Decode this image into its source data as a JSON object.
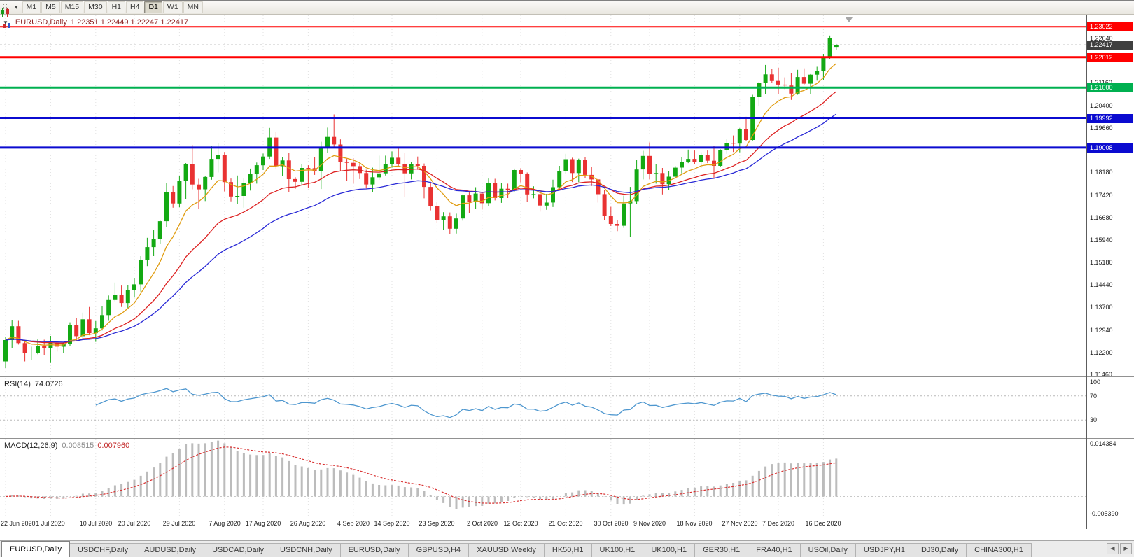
{
  "toolbar": {
    "timeframes": [
      {
        "label": "M1",
        "active": false
      },
      {
        "label": "M5",
        "active": false
      },
      {
        "label": "M15",
        "active": false
      },
      {
        "label": "M30",
        "active": false
      },
      {
        "label": "H1",
        "active": false
      },
      {
        "label": "H4",
        "active": false
      },
      {
        "label": "D1",
        "active": true
      },
      {
        "label": "W1",
        "active": false
      },
      {
        "label": "MN",
        "active": false
      }
    ],
    "caret_glyph": "▾"
  },
  "tabs": {
    "items": [
      {
        "label": "EURUSD,Daily",
        "active": true
      },
      {
        "label": "USDCHF,Daily",
        "active": false
      },
      {
        "label": "AUDUSD,Daily",
        "active": false
      },
      {
        "label": "USDCAD,Daily",
        "active": false
      },
      {
        "label": "USDCNH,Daily",
        "active": false
      },
      {
        "label": "EURUSD,Daily",
        "active": false
      },
      {
        "label": "GBPUSD,H4",
        "active": false
      },
      {
        "label": "XAUUSD,Weekly",
        "active": false
      },
      {
        "label": "HK50,H1",
        "active": false
      },
      {
        "label": "UK100,H1",
        "active": false
      },
      {
        "label": "UK100,H1",
        "active": false
      },
      {
        "label": "GER30,H1",
        "active": false
      },
      {
        "label": "FRA40,H1",
        "active": false
      },
      {
        "label": "USOil,Daily",
        "active": false
      },
      {
        "label": "USDJPY,H1",
        "active": false
      },
      {
        "label": "DJ30,Daily",
        "active": false
      },
      {
        "label": "CHINA300,H1",
        "active": false
      }
    ],
    "scroll_left": "◀",
    "scroll_right": "▶"
  },
  "chart_data": {
    "type": "candlestick",
    "title": {
      "symbol": "EURUSD,Daily",
      "ohlc": "1.22351 1.22449 1.22247 1.22417"
    },
    "ylim": [
      1.114,
      1.234
    ],
    "y_axis_labels": [
      "1.22640",
      "1.21900",
      "1.21160",
      "1.20400",
      "1.19660",
      "1.18920",
      "1.18180",
      "1.17420",
      "1.16680",
      "1.15940",
      "1.15180",
      "1.14440",
      "1.13700",
      "1.12940",
      "1.12200",
      "1.11460"
    ],
    "x_axis": {
      "labels": [
        "22 Jun 2020",
        "1 Jul 2020",
        "10 Jul 2020",
        "20 Jul 2020",
        "29 Jul 2020",
        "7 Aug 2020",
        "17 Aug 2020",
        "26 Aug 2020",
        "4 Sep 2020",
        "14 Sep 2020",
        "23 Sep 2020",
        "2 Oct 2020",
        "12 Oct 2020",
        "21 Oct 2020",
        "30 Oct 2020",
        "9 Nov 2020",
        "18 Nov 2020",
        "27 Nov 2020",
        "7 Dec 2020",
        "16 Dec 2020"
      ],
      "indices": [
        0,
        7,
        14,
        20,
        27,
        34,
        40,
        47,
        54,
        60,
        67,
        74,
        80,
        87,
        94,
        100,
        107,
        114,
        120,
        127
      ]
    },
    "up_color": "#13a913",
    "down_color": "#e93232",
    "candles": [
      [
        1.119,
        1.1271,
        1.1168,
        1.1261
      ],
      [
        1.1261,
        1.1326,
        1.1233,
        1.1307
      ],
      [
        1.1307,
        1.1325,
        1.1246,
        1.1251
      ],
      [
        1.1251,
        1.1262,
        1.119,
        1.1218
      ],
      [
        1.1218,
        1.1239,
        1.1194,
        1.1219
      ],
      [
        1.1219,
        1.1263,
        1.1214,
        1.1242
      ],
      [
        1.1242,
        1.1262,
        1.1211,
        1.1234
      ],
      [
        1.1234,
        1.1275,
        1.1185,
        1.1252
      ],
      [
        1.1252,
        1.1254,
        1.1223,
        1.1239
      ],
      [
        1.1239,
        1.1254,
        1.1219,
        1.1248
      ],
      [
        1.1248,
        1.132,
        1.1241,
        1.131
      ],
      [
        1.131,
        1.1333,
        1.1259,
        1.1274
      ],
      [
        1.1274,
        1.1352,
        1.1266,
        1.133
      ],
      [
        1.133,
        1.1371,
        1.1277,
        1.1284
      ],
      [
        1.1284,
        1.1324,
        1.1255,
        1.13
      ],
      [
        1.13,
        1.1375,
        1.1293,
        1.1344
      ],
      [
        1.1344,
        1.1409,
        1.1325,
        1.1394
      ],
      [
        1.1394,
        1.1452,
        1.139,
        1.141
      ],
      [
        1.141,
        1.1442,
        1.1371,
        1.1384
      ],
      [
        1.1384,
        1.1444,
        1.1368,
        1.1427
      ],
      [
        1.1427,
        1.1468,
        1.1402,
        1.1446
      ],
      [
        1.1446,
        1.154,
        1.1422,
        1.1527
      ],
      [
        1.1527,
        1.1601,
        1.1507,
        1.157
      ],
      [
        1.157,
        1.1627,
        1.154,
        1.1597
      ],
      [
        1.1597,
        1.1658,
        1.1581,
        1.1656
      ],
      [
        1.1656,
        1.1782,
        1.1637,
        1.1752
      ],
      [
        1.1752,
        1.1773,
        1.1701,
        1.1715
      ],
      [
        1.1715,
        1.1807,
        1.1702,
        1.179
      ],
      [
        1.179,
        1.1849,
        1.173,
        1.1847
      ],
      [
        1.1847,
        1.1909,
        1.1762,
        1.1778
      ],
      [
        1.1778,
        1.1797,
        1.1696,
        1.1762
      ],
      [
        1.1762,
        1.1807,
        1.1723,
        1.1803
      ],
      [
        1.1803,
        1.1905,
        1.1794,
        1.1863
      ],
      [
        1.1863,
        1.1916,
        1.1818,
        1.1876
      ],
      [
        1.1876,
        1.1886,
        1.1755,
        1.1786
      ],
      [
        1.1786,
        1.1798,
        1.1722,
        1.1738
      ],
      [
        1.1738,
        1.1808,
        1.1712,
        1.174
      ],
      [
        1.174,
        1.1798,
        1.1701,
        1.1784
      ],
      [
        1.1784,
        1.1831,
        1.1758,
        1.1813
      ],
      [
        1.1813,
        1.1851,
        1.1781,
        1.1842
      ],
      [
        1.1842,
        1.1881,
        1.1826,
        1.1871
      ],
      [
        1.1871,
        1.1966,
        1.1863,
        1.1934
      ],
      [
        1.1934,
        1.1954,
        1.1829,
        1.1839
      ],
      [
        1.1839,
        1.1869,
        1.1805,
        1.1858
      ],
      [
        1.1858,
        1.1883,
        1.1754,
        1.1796
      ],
      [
        1.1796,
        1.1802,
        1.1764,
        1.1787
      ],
      [
        1.1787,
        1.1846,
        1.1775,
        1.1833
      ],
      [
        1.1833,
        1.1842,
        1.1767,
        1.1832
      ],
      [
        1.1832,
        1.1869,
        1.181,
        1.1822
      ],
      [
        1.1822,
        1.192,
        1.1763,
        1.1903
      ],
      [
        1.1903,
        1.1967,
        1.1883,
        1.1936
      ],
      [
        1.1936,
        1.2011,
        1.1901,
        1.1911
      ],
      [
        1.1911,
        1.1928,
        1.1823,
        1.1854
      ],
      [
        1.1854,
        1.1863,
        1.1789,
        1.185
      ],
      [
        1.185,
        1.1865,
        1.1781,
        1.1839
      ],
      [
        1.1839,
        1.1852,
        1.1796,
        1.1816
      ],
      [
        1.1816,
        1.1827,
        1.1765,
        1.1778
      ],
      [
        1.1778,
        1.1834,
        1.1753,
        1.1802
      ],
      [
        1.1802,
        1.1874,
        1.1794,
        1.1815
      ],
      [
        1.1815,
        1.1874,
        1.1808,
        1.1845
      ],
      [
        1.1845,
        1.1888,
        1.1834,
        1.1867
      ],
      [
        1.1867,
        1.19,
        1.1836,
        1.1846
      ],
      [
        1.1846,
        1.1884,
        1.1737,
        1.1815
      ],
      [
        1.1815,
        1.1852,
        1.1795,
        1.1847
      ],
      [
        1.1847,
        1.1871,
        1.1827,
        1.184
      ],
      [
        1.184,
        1.1848,
        1.1732,
        1.177
      ],
      [
        1.177,
        1.1787,
        1.1692,
        1.1707
      ],
      [
        1.1707,
        1.1719,
        1.1651,
        1.166
      ],
      [
        1.166,
        1.1686,
        1.1626,
        1.1672
      ],
      [
        1.1672,
        1.1685,
        1.1612,
        1.1631
      ],
      [
        1.1631,
        1.1681,
        1.1615,
        1.1665
      ],
      [
        1.1665,
        1.1745,
        1.1658,
        1.1742
      ],
      [
        1.1742,
        1.1755,
        1.1684,
        1.172
      ],
      [
        1.172,
        1.1769,
        1.1698,
        1.1748
      ],
      [
        1.1748,
        1.1751,
        1.1695,
        1.1716
      ],
      [
        1.1716,
        1.1798,
        1.1706,
        1.1783
      ],
      [
        1.1783,
        1.1797,
        1.1725,
        1.1733
      ],
      [
        1.1733,
        1.1782,
        1.1717,
        1.1764
      ],
      [
        1.1764,
        1.1781,
        1.1733,
        1.176
      ],
      [
        1.176,
        1.1831,
        1.1754,
        1.1826
      ],
      [
        1.1826,
        1.1832,
        1.1785,
        1.1812
      ],
      [
        1.1812,
        1.1818,
        1.172,
        1.1745
      ],
      [
        1.1745,
        1.1772,
        1.1732,
        1.1746
      ],
      [
        1.1746,
        1.1758,
        1.1688,
        1.1708
      ],
      [
        1.1708,
        1.1747,
        1.1694,
        1.1718
      ],
      [
        1.1718,
        1.1794,
        1.1703,
        1.1769
      ],
      [
        1.1769,
        1.184,
        1.176,
        1.1823
      ],
      [
        1.1823,
        1.188,
        1.1812,
        1.1862
      ],
      [
        1.1862,
        1.1867,
        1.1786,
        1.1816
      ],
      [
        1.1816,
        1.1864,
        1.1786,
        1.186
      ],
      [
        1.186,
        1.1869,
        1.1799,
        1.181
      ],
      [
        1.181,
        1.1837,
        1.1773,
        1.1795
      ],
      [
        1.1795,
        1.18,
        1.1718,
        1.1746
      ],
      [
        1.1746,
        1.1759,
        1.1659,
        1.1674
      ],
      [
        1.1674,
        1.1704,
        1.164,
        1.1647
      ],
      [
        1.1647,
        1.1659,
        1.1623,
        1.1641
      ],
      [
        1.1641,
        1.1741,
        1.1634,
        1.1715
      ],
      [
        1.1715,
        1.177,
        1.1603,
        1.1723
      ],
      [
        1.1723,
        1.1861,
        1.1712,
        1.1828
      ],
      [
        1.1828,
        1.189,
        1.1795,
        1.1873
      ],
      [
        1.1873,
        1.1918,
        1.1795,
        1.1813
      ],
      [
        1.1813,
        1.1845,
        1.1781,
        1.1816
      ],
      [
        1.1816,
        1.1833,
        1.1745,
        1.1779
      ],
      [
        1.1779,
        1.1823,
        1.1759,
        1.1804
      ],
      [
        1.1804,
        1.1839,
        1.1799,
        1.1834
      ],
      [
        1.1834,
        1.1869,
        1.1815,
        1.1852
      ],
      [
        1.1852,
        1.1894,
        1.1849,
        1.1863
      ],
      [
        1.1863,
        1.1891,
        1.1846,
        1.1854
      ],
      [
        1.1854,
        1.1885,
        1.1833,
        1.1875
      ],
      [
        1.1875,
        1.1891,
        1.1849,
        1.1857
      ],
      [
        1.1857,
        1.1906,
        1.18,
        1.184
      ],
      [
        1.184,
        1.1895,
        1.1837,
        1.1893
      ],
      [
        1.1893,
        1.193,
        1.188,
        1.1916
      ],
      [
        1.1916,
        1.1941,
        1.1886,
        1.1914
      ],
      [
        1.1914,
        1.1965,
        1.1885,
        1.1963
      ],
      [
        1.1963,
        1.2003,
        1.1923,
        1.1926
      ],
      [
        1.1926,
        1.2076,
        1.1924,
        1.207
      ],
      [
        1.207,
        1.2119,
        1.204,
        1.2115
      ],
      [
        1.2115,
        1.2175,
        1.2078,
        1.2144
      ],
      [
        1.2144,
        1.2163,
        1.2115,
        1.2122
      ],
      [
        1.2122,
        1.2166,
        1.2079,
        1.211
      ],
      [
        1.211,
        1.2134,
        1.2095,
        1.2107
      ],
      [
        1.2107,
        1.2148,
        1.2059,
        1.208
      ],
      [
        1.208,
        1.2159,
        1.2076,
        1.2135
      ],
      [
        1.2135,
        1.2164,
        1.211,
        1.2113
      ],
      [
        1.2113,
        1.2145,
        1.2078,
        1.2143
      ],
      [
        1.2143,
        1.2169,
        1.2123,
        1.2154
      ],
      [
        1.2154,
        1.2212,
        1.2126,
        1.22
      ],
      [
        1.22,
        1.2273,
        1.2195,
        1.2265
      ],
      [
        1.22351,
        1.22449,
        1.22247,
        1.22417
      ]
    ],
    "moving_averages": [
      {
        "name": "ma-fast",
        "type": "ema",
        "period": 8,
        "color": "#e09c10"
      },
      {
        "name": "ma-mid",
        "type": "ema",
        "period": 20,
        "color": "#dd2222"
      },
      {
        "name": "ma-slow",
        "type": "ema",
        "period": 34,
        "color": "#2929d6"
      }
    ],
    "hlines": [
      {
        "label": "1.23022",
        "value": 1.23022,
        "color": "#ff0000",
        "width": 2
      },
      {
        "label": "1.22012",
        "value": 1.22012,
        "color": "#ff0000",
        "width": 3
      },
      {
        "label": "1.21000",
        "value": 1.21,
        "color": "#00b050",
        "width": 3
      },
      {
        "label": "1.19992",
        "value": 1.19992,
        "color": "#0b0bd0",
        "width": 3
      },
      {
        "label": "1.19008",
        "value": 1.19008,
        "color": "#0b0bd0",
        "width": 3
      }
    ],
    "current_price": {
      "label": "1.22417",
      "value": 1.22417,
      "badge_color": "#3f3f3f"
    },
    "rsi": {
      "label": "RSI(14)",
      "value_label": "74.0726",
      "period": 14,
      "range": [
        0,
        100
      ],
      "levels": [
        70,
        30
      ],
      "axis_labels": [
        "100",
        "70",
        "30"
      ],
      "color": "#4e97cf"
    },
    "macd": {
      "label": "MACD(12,26,9)",
      "fast": 12,
      "slow": 26,
      "signal": 9,
      "value_labels": [
        "0.008515",
        "0.007960"
      ],
      "axis_labels": [
        "0.014384",
        "-0.005390"
      ],
      "scale": [
        -0.00539,
        0.014384
      ],
      "hist_color": "#bcbcbc",
      "signal_color": "#d83030"
    }
  }
}
